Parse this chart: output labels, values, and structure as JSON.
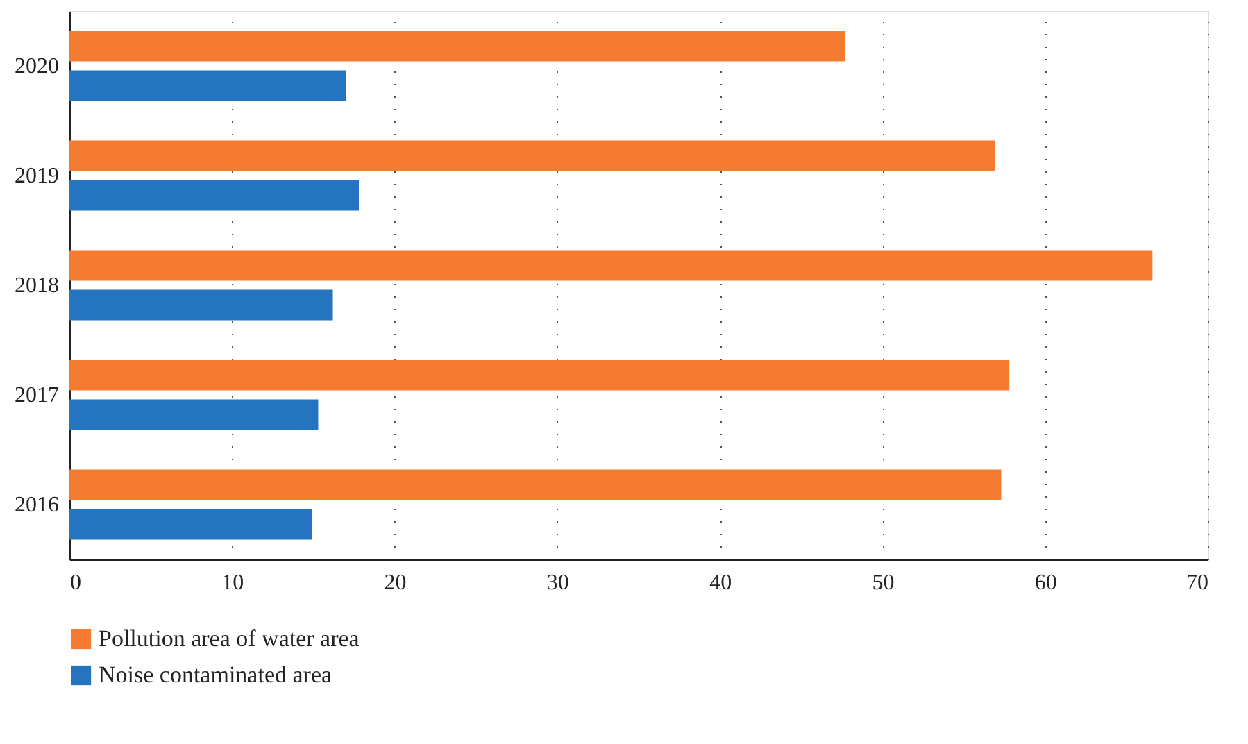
{
  "chart_data": {
    "type": "bar",
    "orientation": "horizontal",
    "categories": [
      "2020",
      "2019",
      "2018",
      "2017",
      "2016"
    ],
    "series": [
      {
        "name": "Pollution area of water area",
        "color": "#f47b30",
        "values": [
          47.7,
          56.9,
          66.6,
          57.8,
          57.3
        ]
      },
      {
        "name": "Noise contaminated area",
        "color": "#2474bf",
        "values": [
          17.0,
          17.8,
          16.2,
          15.3,
          14.9
        ]
      }
    ],
    "xlim": [
      0,
      70
    ],
    "xticks": [
      0,
      10,
      20,
      30,
      40,
      50,
      60,
      70
    ],
    "grid": "x",
    "legend": "bottom left"
  }
}
